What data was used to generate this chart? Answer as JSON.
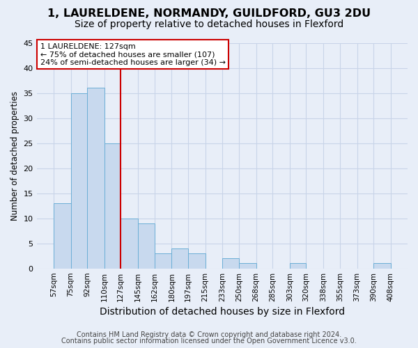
{
  "title1": "1, LAURELDENE, NORMANDY, GUILDFORD, GU3 2DU",
  "title2": "Size of property relative to detached houses in Flexford",
  "xlabel": "Distribution of detached houses by size in Flexford",
  "ylabel": "Number of detached properties",
  "bin_edges": [
    57,
    75,
    92,
    110,
    127,
    145,
    162,
    180,
    197,
    215,
    233,
    250,
    268,
    285,
    303,
    320,
    338,
    355,
    373,
    390,
    408
  ],
  "bar_heights": [
    13,
    35,
    36,
    25,
    10,
    9,
    3,
    4,
    3,
    0,
    2,
    1,
    0,
    0,
    1,
    0,
    0,
    0,
    0,
    1
  ],
  "bar_color": "#c8d9ee",
  "bar_edge_color": "#6baed6",
  "vline_x": 127,
  "vline_color": "#cc0000",
  "ylim": [
    0,
    45
  ],
  "yticks": [
    0,
    5,
    10,
    15,
    20,
    25,
    30,
    35,
    40,
    45
  ],
  "annotation_text": "1 LAURELDENE: 127sqm\n← 75% of detached houses are smaller (107)\n24% of semi-detached houses are larger (34) →",
  "annotation_box_color": "#ffffff",
  "annotation_box_edge_color": "#cc0000",
  "footer1": "Contains HM Land Registry data © Crown copyright and database right 2024.",
  "footer2": "Contains public sector information licensed under the Open Government Licence v3.0.",
  "bg_color": "#e8eef8",
  "grid_color": "#c8d4e8",
  "title1_fontsize": 11.5,
  "title2_fontsize": 10,
  "xlabel_fontsize": 10,
  "ylabel_fontsize": 8.5,
  "tick_fontsize": 7.5,
  "annot_fontsize": 8,
  "footer_fontsize": 7
}
